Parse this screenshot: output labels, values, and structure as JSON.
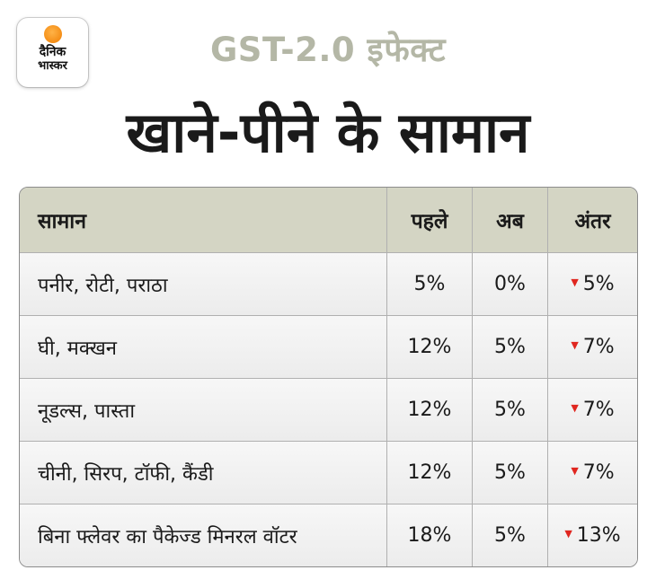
{
  "brand": {
    "line1": "दैनिक",
    "line2": "भास्कर",
    "accent": "#f07d00"
  },
  "kicker": "GST-2.0 इफेक्ट",
  "headline": "खाने-पीने के सामान",
  "table": {
    "headers": [
      "सामान",
      "पहले",
      "अब",
      "अंतर"
    ],
    "rows": [
      {
        "item": "पनीर, रोटी, पराठा",
        "before": "5%",
        "now": "0%",
        "diff": "5%"
      },
      {
        "item": "घी, मक्खन",
        "before": "12%",
        "now": "5%",
        "diff": "7%"
      },
      {
        "item": "नूडल्स, पास्ता",
        "before": "12%",
        "now": "5%",
        "diff": "7%"
      },
      {
        "item": "चीनी, सिरप, टॉफी, कैंडी",
        "before": "12%",
        "now": "5%",
        "diff": "7%"
      },
      {
        "item": "बिना फ्लेवर का पैकेज्ड मिनरल वॉटर",
        "before": "18%",
        "now": "5%",
        "diff": "13%"
      }
    ],
    "decrease_color": "#e0261f",
    "header_color": "#d4d5c4"
  }
}
